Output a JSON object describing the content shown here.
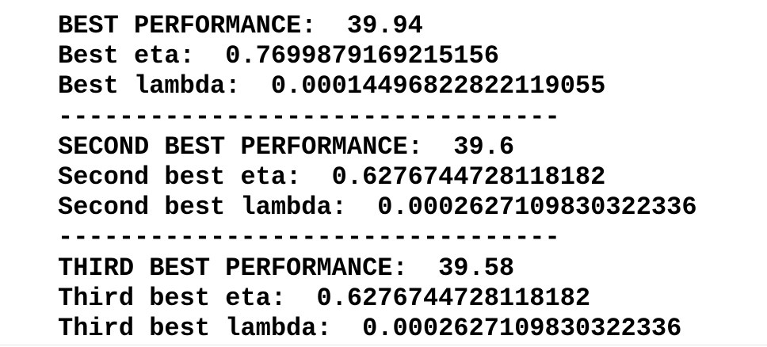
{
  "lines": [
    {
      "label": "BEST PERFORMANCE:",
      "value": "39.94"
    },
    {
      "label": "Best eta:",
      "value": "0.7699879169215156"
    },
    {
      "label": "Best lambda:",
      "value": "0.00014496822822119055"
    },
    {
      "text": "---------------------------------"
    },
    {
      "label": "SECOND BEST PERFORMANCE:",
      "value": "39.6"
    },
    {
      "label": "Second best eta:",
      "value": "0.6276744728118182"
    },
    {
      "label": "Second best lambda:",
      "value": "0.0002627109830322336"
    },
    {
      "text": "---------------------------------"
    },
    {
      "label": "THIRD BEST PERFORMANCE:",
      "value": "39.58"
    },
    {
      "label": "Third best eta:",
      "value": "0.6276744728118182"
    },
    {
      "label": "Third best lambda:",
      "value": "0.0002627109830322336"
    }
  ]
}
